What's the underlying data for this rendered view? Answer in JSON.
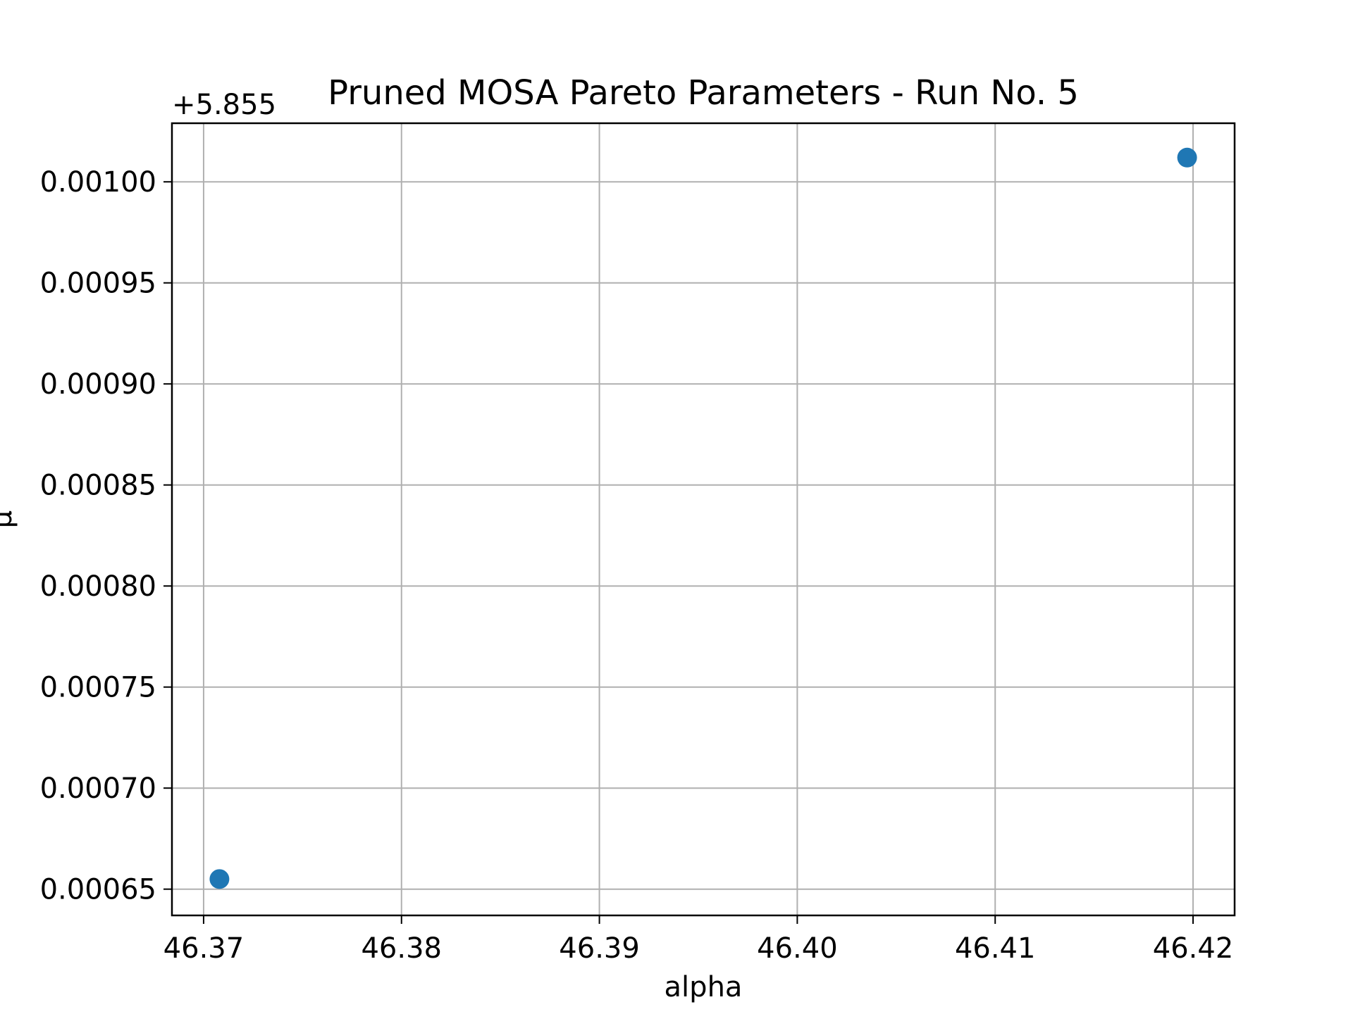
{
  "chart_data": {
    "type": "scatter",
    "title": "Pruned MOSA Pareto Parameters - Run No. 5",
    "xlabel": "alpha",
    "ylabel": "μ",
    "y_offset_label": "+5.855",
    "xlim": [
      46.3684,
      46.4221
    ],
    "ylim": [
      0.000637,
      0.001029
    ],
    "x_ticks": [
      46.37,
      46.38,
      46.39,
      46.4,
      46.41,
      46.42
    ],
    "x_tick_labels": [
      "46.37",
      "46.38",
      "46.39",
      "46.40",
      "46.41",
      "46.42"
    ],
    "y_ticks": [
      0.00065,
      0.0007,
      0.00075,
      0.0008,
      0.00085,
      0.0009,
      0.00095,
      0.001
    ],
    "y_tick_labels": [
      "0.00065",
      "0.00070",
      "0.00075",
      "0.00080",
      "0.00085",
      "0.00090",
      "0.00095",
      "0.00100"
    ],
    "grid": true,
    "series": [
      {
        "color": "#1f77b4",
        "points": [
          {
            "x": 46.3708,
            "y": 0.000655
          },
          {
            "x": 46.4197,
            "y": 0.001012
          }
        ]
      }
    ]
  }
}
